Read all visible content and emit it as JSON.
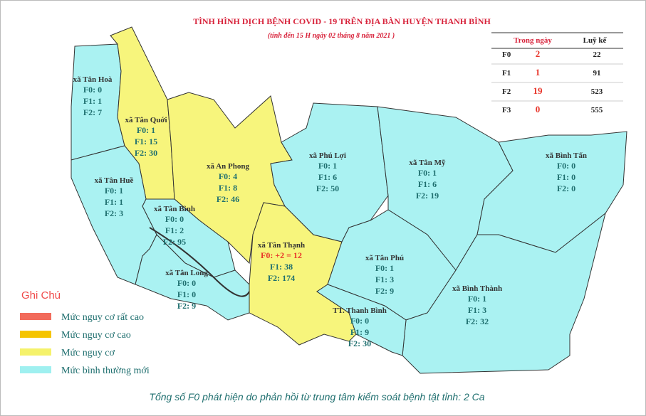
{
  "title": "TÌNH HÌNH DỊCH BỆNH COVID - 19 TRÊN ĐỊA BÀN HUYỆN THANH BÌNH",
  "subtitle": "(tính đến 15 H ngày 02 tháng 8 năm 2021 )",
  "summary_table": {
    "headers": [
      "Trong ngày",
      "Luỹ kế"
    ],
    "rows": [
      [
        "F0",
        2,
        22
      ],
      [
        "F1",
        1,
        91
      ],
      [
        "F2",
        19,
        523
      ],
      [
        "F3",
        0,
        555
      ]
    ]
  },
  "regions": [
    {
      "name": "xã Tân Hoà",
      "color": "#aaf2f2",
      "lines": [
        "F0: 0",
        "F1: 1",
        "F2: 7"
      ]
    },
    {
      "name": "xã Tân Quới",
      "color": "#f7f57c",
      "lines": [
        "F0: 1",
        "F1: 15",
        "F2: 30"
      ]
    },
    {
      "name": "xã An Phong",
      "color": "#f7f57c",
      "lines": [
        "F0: 4",
        "F1: 8",
        "F2: 46"
      ]
    },
    {
      "name": "xã Tân Thạnh",
      "color": "#f7f57c",
      "lines": [
        "F0: +2 = 12",
        "F1: 38",
        "F2: 174"
      ]
    },
    {
      "name": "xã Tân Huề",
      "color": "#aaf2f2",
      "lines": [
        "F0: 1",
        "F1: 1",
        "F2: 3"
      ]
    },
    {
      "name": "xã Tân Bình",
      "color": "#aaf2f2",
      "lines": [
        "F0: 0",
        "F1: 2",
        "F2: 95"
      ]
    },
    {
      "name": "xã Tân Long",
      "color": "#aaf2f2",
      "lines": [
        "F0: 0",
        "F1: 0",
        "F2: 9"
      ]
    },
    {
      "name": "xã Phú Lợi",
      "color": "#aaf2f2",
      "lines": [
        "F0: 1",
        "F1: 6",
        "F2: 50"
      ]
    },
    {
      "name": "xã Tân Mỹ",
      "color": "#aaf2f2",
      "lines": [
        "F0: 1",
        "F1: 6",
        "F2: 19"
      ]
    },
    {
      "name": "xã Bình Tấn",
      "color": "#aaf2f2",
      "lines": [
        "F0: 0",
        "F1: 0",
        "F2: 0"
      ]
    },
    {
      "name": "xã Tân Phú",
      "color": "#aaf2f2",
      "lines": [
        "F0: 1",
        "F1: 3",
        "F2: 9"
      ]
    },
    {
      "name": "xã Bình Thành",
      "color": "#aaf2f2",
      "lines": [
        "F0: 1",
        "F1: 3",
        "F2: 32"
      ]
    },
    {
      "name": "TT. Thanh Bình",
      "color": "#aaf2f2",
      "lines": [
        "F0: 0",
        "F1: 9",
        "F2: 30"
      ]
    }
  ],
  "legend": {
    "title": "Ghi Chú",
    "items": [
      {
        "label": "Mức  nguy cơ rất cao",
        "color": "#f26b5b"
      },
      {
        "label": "Mức  nguy cơ cao",
        "color": "#f5c400"
      },
      {
        "label": "Mức  nguy cơ",
        "color": "#f5f26b"
      },
      {
        "label": "Mức  bình thường mới",
        "color": "#9ff0f0"
      }
    ]
  },
  "footer": "Tổng số F0 phát hiện do phản hồi từ trung tâm kiểm soát bệnh tật tỉnh: 2 Ca"
}
